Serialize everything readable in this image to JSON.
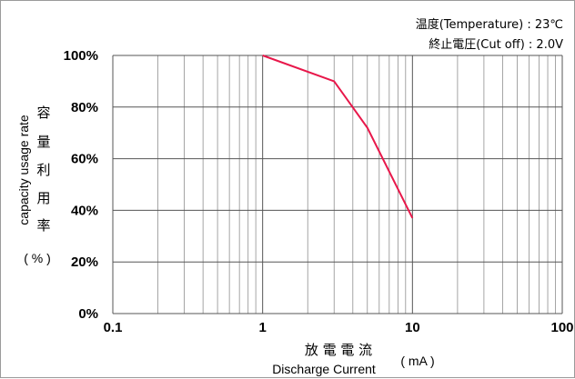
{
  "chart_data": {
    "type": "line",
    "x_scale": "log",
    "xlim": [
      0.1,
      100
    ],
    "ylim": [
      0,
      100
    ],
    "x_ticks": [
      "0.1",
      "1",
      "10",
      "100"
    ],
    "y_ticks": [
      "0%",
      "20%",
      "40%",
      "60%",
      "80%",
      "100%"
    ],
    "grid": true,
    "xlabel_cjk": "放 電 電 流",
    "xlabel": "Discharge Current",
    "xunit": "( mA )",
    "ylabel": "capacity usage rate",
    "ylabel_cjk": [
      "容",
      "量",
      "利",
      "用",
      "率"
    ],
    "yunit": "( % )",
    "annotations": [
      "温度(Temperature) : 23℃",
      "終止電圧(Cut off) : 2.0V"
    ],
    "series": [
      {
        "x": [
          1,
          3,
          5,
          10
        ],
        "y": [
          100,
          90,
          72,
          37
        ],
        "color": "#e8174a"
      }
    ]
  }
}
